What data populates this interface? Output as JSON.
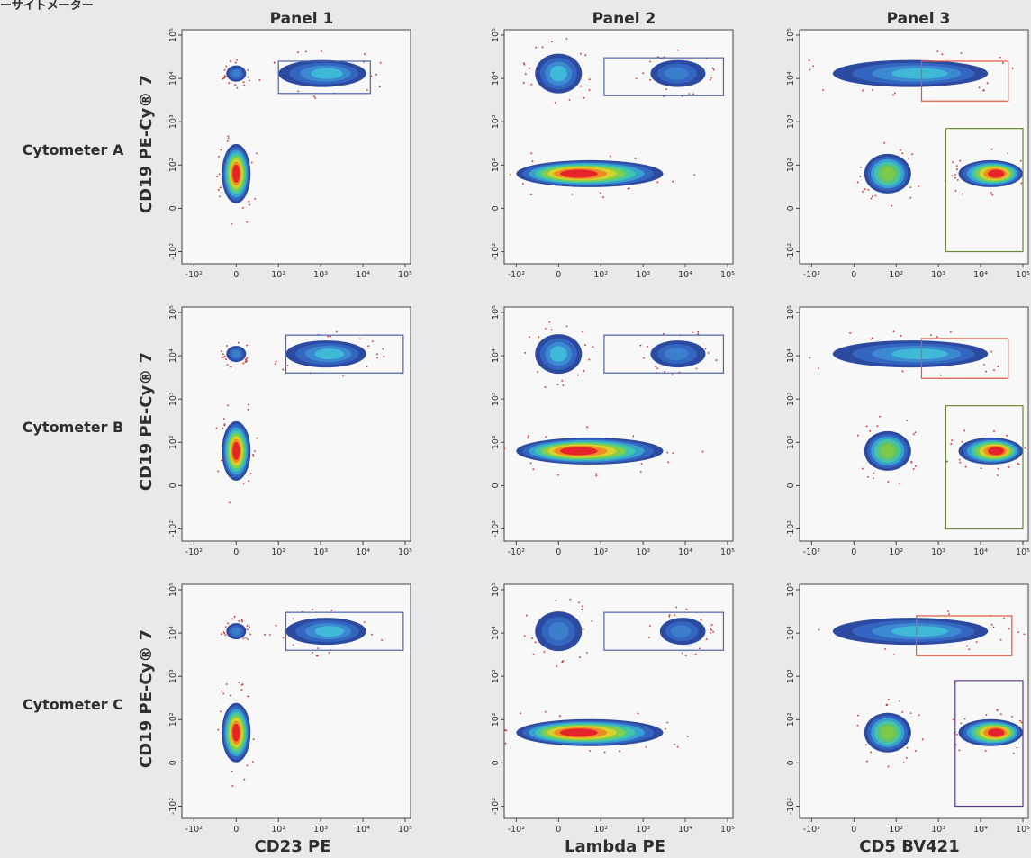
{
  "header": {
    "corner_text": "ーサイトメーター"
  },
  "panels": [
    "Panel 1",
    "Panel 2",
    "Panel 3"
  ],
  "rows": [
    "Cytometer A",
    "Cytometer B",
    "Cytometer C"
  ],
  "y_axis_title": "CD19 PE-Cy® 7",
  "x_axis_titles": [
    "CD23 PE",
    "Lambda PE",
    "CD5 BV421"
  ],
  "colors": {
    "page_background": "#e8e9eb",
    "plot_background": "#f8f8f8",
    "gate_blue": "#4a63b5",
    "gate_red": "#e05a3f",
    "gate_green": "#6b8a3a",
    "gate_purple": "#5a3c8c",
    "density_low": "#2b4aa0",
    "density_mid": "#3fb0c8",
    "density_high": "#e6232b",
    "outlier_dots": "#d42a2a"
  },
  "chart_data": {
    "type": "scatter",
    "description_of_marks": "density contour plots with rectangular gates",
    "x_tick_labels": [
      "-10²",
      "0",
      "10²",
      "10³",
      "10⁴",
      "10⁵"
    ],
    "y_tick_labels": [
      "-10²",
      "0",
      "10²",
      "10³",
      "10⁴",
      "10⁵"
    ],
    "axis_scale": "biexponential (log with linear region around 0)",
    "xlim": [
      "-10²",
      "10⁵"
    ],
    "ylim": [
      "-10²",
      "10⁵"
    ],
    "grid": false,
    "plots": [
      {
        "row": "Cytometer A",
        "panel": "Panel 1",
        "xlabel": "CD23 PE",
        "populations": [
          {
            "x": 0,
            "y": 80,
            "kind": "dense-core",
            "peak": "red"
          },
          {
            "x": 0,
            "y": 13000,
            "kind": "small",
            "peak": "blue"
          },
          {
            "x": 2500,
            "y": 13000,
            "kind": "elongated",
            "peak": "cyan",
            "x_from": 100,
            "x_to": 12000
          }
        ],
        "gates": [
          {
            "color": "blue",
            "x": [
              100,
              15000
            ],
            "y": [
              4500,
              25000
            ]
          }
        ]
      },
      {
        "row": "Cytometer A",
        "panel": "Panel 2",
        "xlabel": "Lambda PE",
        "populations": [
          {
            "x": 0,
            "y": 80,
            "kind": "elongated",
            "peak": "red",
            "x_from": -100,
            "x_to": 3000
          },
          {
            "x": 0,
            "y": 13000,
            "kind": "medium",
            "peak": "cyan"
          },
          {
            "x": 5000,
            "y": 13000,
            "kind": "elongated",
            "peak": "blue",
            "x_from": 1500,
            "x_to": 30000
          }
        ],
        "gates": [
          {
            "color": "blue",
            "x": [
              120,
              80000
            ],
            "y": [
              4000,
              30000
            ]
          }
        ]
      },
      {
        "row": "Cytometer A",
        "panel": "Panel 3",
        "xlabel": "CD5 BV421",
        "populations": [
          {
            "x": 80,
            "y": 80,
            "kind": "medium",
            "peak": "green"
          },
          {
            "x": 1200,
            "y": 13000,
            "kind": "elongated",
            "peak": "cyan",
            "x_from": -50,
            "x_to": 15000
          },
          {
            "x": 40000,
            "y": 80,
            "kind": "elongated",
            "peak": "red",
            "x_from": 3000,
            "x_to": 100000
          }
        ],
        "gates": [
          {
            "color": "red",
            "x": [
              400,
              45000
            ],
            "y": [
              3000,
              25000
            ]
          },
          {
            "color": "green",
            "x": [
              1500,
              100000
            ],
            "y": [
              -100,
              700
            ]
          }
        ]
      },
      {
        "row": "Cytometer B",
        "panel": "Panel 1",
        "xlabel": "CD23 PE",
        "populations": [
          {
            "x": 0,
            "y": 80,
            "kind": "dense-core",
            "peak": "red"
          },
          {
            "x": 0,
            "y": 11000,
            "kind": "small",
            "peak": "blue"
          },
          {
            "x": 2500,
            "y": 11000,
            "kind": "elongated",
            "peak": "cyan",
            "x_from": 150,
            "x_to": 12000
          }
        ],
        "gates": [
          {
            "color": "blue",
            "x": [
              150,
              90000
            ],
            "y": [
              4000,
              30000
            ]
          }
        ]
      },
      {
        "row": "Cytometer B",
        "panel": "Panel 2",
        "xlabel": "Lambda PE",
        "populations": [
          {
            "x": 0,
            "y": 80,
            "kind": "elongated",
            "peak": "red",
            "x_from": -100,
            "x_to": 3000
          },
          {
            "x": 0,
            "y": 11000,
            "kind": "medium",
            "peak": "cyan"
          },
          {
            "x": 5000,
            "y": 11000,
            "kind": "elongated",
            "peak": "blue",
            "x_from": 1500,
            "x_to": 30000
          }
        ],
        "gates": [
          {
            "color": "blue",
            "x": [
              120,
              80000
            ],
            "y": [
              4000,
              30000
            ]
          }
        ]
      },
      {
        "row": "Cytometer B",
        "panel": "Panel 3",
        "xlabel": "CD5 BV421",
        "populations": [
          {
            "x": 80,
            "y": 80,
            "kind": "medium",
            "peak": "green"
          },
          {
            "x": 1200,
            "y": 11000,
            "kind": "elongated",
            "peak": "cyan",
            "x_from": -50,
            "x_to": 15000
          },
          {
            "x": 40000,
            "y": 80,
            "kind": "elongated",
            "peak": "red",
            "x_from": 3000,
            "x_to": 100000
          }
        ],
        "gates": [
          {
            "color": "red",
            "x": [
              400,
              45000
            ],
            "y": [
              3000,
              25000
            ]
          },
          {
            "color": "green",
            "x": [
              1500,
              100000
            ],
            "y": [
              -100,
              700
            ]
          }
        ]
      },
      {
        "row": "Cytometer C",
        "panel": "Panel 1",
        "xlabel": "CD23 PE",
        "populations": [
          {
            "x": 0,
            "y": 70,
            "kind": "dense-core",
            "peak": "red"
          },
          {
            "x": 0,
            "y": 11000,
            "kind": "small",
            "peak": "blue"
          },
          {
            "x": 2500,
            "y": 11000,
            "kind": "elongated",
            "peak": "cyan",
            "x_from": 150,
            "x_to": 12000
          }
        ],
        "gates": [
          {
            "color": "blue",
            "x": [
              150,
              90000
            ],
            "y": [
              4000,
              30000
            ]
          }
        ]
      },
      {
        "row": "Cytometer C",
        "panel": "Panel 2",
        "xlabel": "Lambda PE",
        "populations": [
          {
            "x": 0,
            "y": 70,
            "kind": "elongated",
            "peak": "red",
            "x_from": -100,
            "x_to": 3000
          },
          {
            "x": 0,
            "y": 11000,
            "kind": "medium",
            "peak": "blue"
          },
          {
            "x": 6000,
            "y": 11000,
            "kind": "elongated",
            "peak": "blue",
            "x_from": 2500,
            "x_to": 30000
          }
        ],
        "gates": [
          {
            "color": "blue",
            "x": [
              120,
              80000
            ],
            "y": [
              4000,
              30000
            ]
          }
        ]
      },
      {
        "row": "Cytometer C",
        "panel": "Panel 3",
        "xlabel": "CD5 BV421",
        "populations": [
          {
            "x": 80,
            "y": 70,
            "kind": "medium",
            "peak": "green"
          },
          {
            "x": 1200,
            "y": 11000,
            "kind": "elongated",
            "peak": "cyan",
            "x_from": -50,
            "x_to": 15000
          },
          {
            "x": 40000,
            "y": 70,
            "kind": "elongated",
            "peak": "red",
            "x_from": 3000,
            "x_to": 100000
          }
        ],
        "gates": [
          {
            "color": "red",
            "x": [
              300,
              55000
            ],
            "y": [
              3000,
              25000
            ]
          },
          {
            "color": "purple",
            "x": [
              2500,
              100000
            ],
            "y": [
              -100,
              800
            ]
          }
        ]
      }
    ]
  }
}
